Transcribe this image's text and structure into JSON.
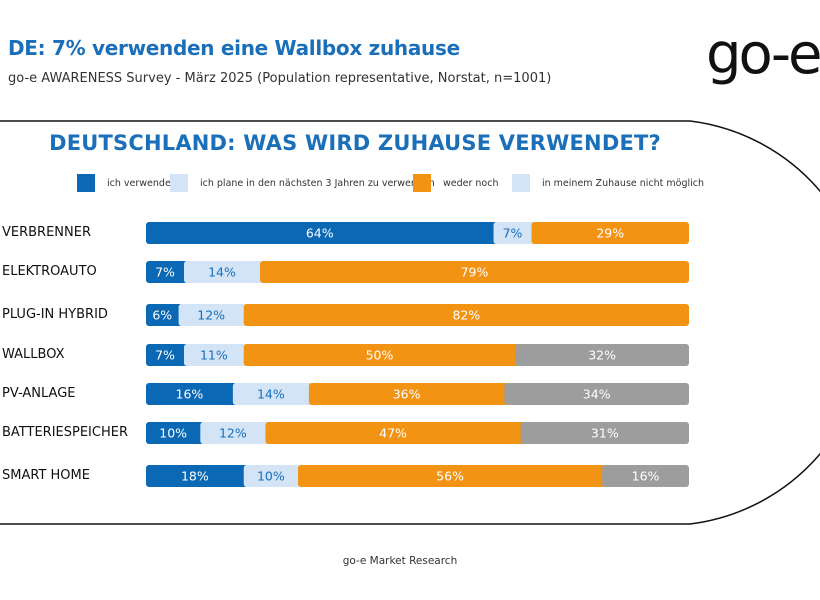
{
  "header": {
    "title": "DE: 7% verwenden eine Wallbox zuhause",
    "subtitle": "go-e AWARENESS Survey - März 2025 (Population representative, Norstat, n=1001)",
    "logo_text": "go-e"
  },
  "footer": "go-e Market Research",
  "chart_data": {
    "type": "bar",
    "orientation": "horizontal",
    "stacked": true,
    "title": "DEUTSCHLAND: WAS WIRD ZUHAUSE VERWENDET?",
    "legend_position": "top",
    "categories": [
      "VERBRENNER",
      "ELEKTROAUTO",
      "PLUG-IN HYBRID",
      "WALLBOX",
      "PV-ANLAGE",
      "BATTERIESPEICHER",
      "SMART HOME"
    ],
    "series": [
      {
        "name": "ich verwende",
        "color": "#0a68b4",
        "legend_color": "#0a68b4",
        "label_color": "#ffffff",
        "values": [
          64,
          7,
          6,
          7,
          16,
          10,
          18
        ]
      },
      {
        "name": "ich plane in den nächsten 3 Jahren zu verwenden",
        "color": "#d3e4f6",
        "legend_color": "#d3e4f6",
        "label_color": "#1a6fb8",
        "values": [
          7,
          14,
          12,
          11,
          14,
          12,
          10
        ]
      },
      {
        "name": "weder noch",
        "color": "#f39313",
        "legend_color": "#f39313",
        "label_color": "#ffffff",
        "values": [
          29,
          79,
          82,
          50,
          36,
          47,
          56
        ]
      },
      {
        "name": "in meinem Zuhause nicht möglich",
        "color": "#9d9d9d",
        "legend_color": "#d3e4f6",
        "label_color": "#ffffff",
        "values": [
          0,
          0,
          0,
          32,
          34,
          31,
          16
        ]
      }
    ],
    "unit": "%",
    "xlim": [
      0,
      100
    ]
  }
}
